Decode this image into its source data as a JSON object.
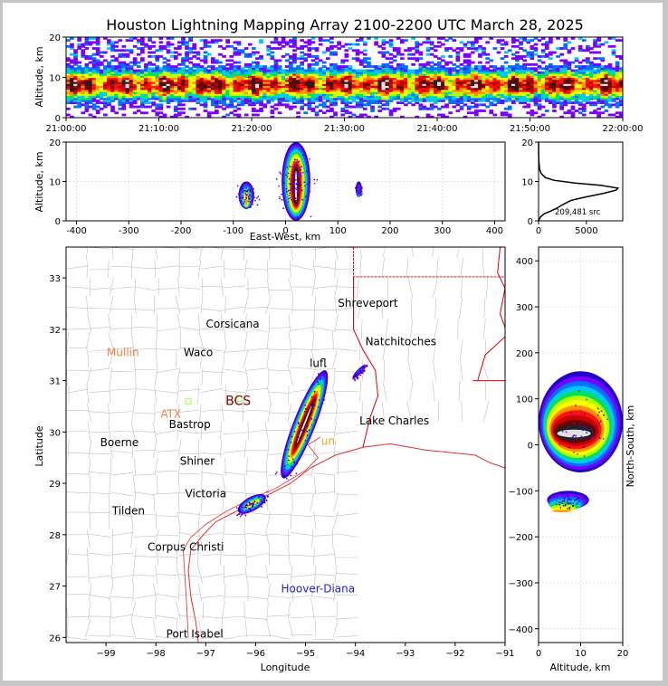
{
  "title": "Houston Lightning Mapping Array 2100-2200 UTC March 28, 2025",
  "colors": {
    "density_scale": [
      "#2200cc",
      "#7a00ff",
      "#0070ff",
      "#00c8ff",
      "#00e060",
      "#b8ff00",
      "#ffff00",
      "#ff9000",
      "#ff1010",
      "#c80000",
      "#700000",
      "#202020",
      "#e0e0e0"
    ],
    "coast": "#e03030",
    "state_line": "#e00000",
    "county_line": "#c0c0c0"
  },
  "chart_data": [
    {
      "id": "time_height",
      "type": "heatmap",
      "ylabel": "Altitude, km",
      "xlim": [
        "21:00:00",
        "22:00:00"
      ],
      "ylim": [
        0,
        20
      ],
      "x_ticks": [
        "21:00:00",
        "21:10:00",
        "21:20:00",
        "21:30:00",
        "21:40:00",
        "21:50:00",
        "22:00:00"
      ],
      "y_ticks": [
        0,
        10,
        20
      ],
      "core_altitude_km": [
        4,
        12
      ],
      "peak_altitude_km": 8
    },
    {
      "id": "ew_altitude",
      "type": "heatmap",
      "xlabel": "East-West, km",
      "ylabel": "Altitude, km",
      "xlim": [
        -420,
        420
      ],
      "ylim": [
        0,
        20
      ],
      "x_ticks": [
        -400,
        -300,
        -200,
        -100,
        0,
        100,
        200,
        300,
        400
      ],
      "y_ticks": [
        0,
        10,
        20
      ],
      "cells": [
        {
          "center_km": 20,
          "width_km": 55,
          "alt_low_km": 0,
          "alt_high_km": 20,
          "max_level": 12
        },
        {
          "center_km": -75,
          "width_km": 30,
          "alt_low_km": 3,
          "alt_high_km": 10,
          "max_level": 7
        },
        {
          "center_km": 140,
          "width_km": 12,
          "alt_low_km": 6,
          "alt_high_km": 10,
          "max_level": 3
        }
      ]
    },
    {
      "id": "altitude_histogram",
      "type": "line",
      "xlim": [
        0,
        8800
      ],
      "ylim": [
        0,
        20
      ],
      "x_ticks": [
        0,
        5000
      ],
      "y_ticks": [
        0,
        10,
        20
      ],
      "annotation": "209,481 src",
      "series": [
        {
          "points": [
            [
              0,
              0
            ],
            [
              200,
              1
            ],
            [
              600,
              1.8
            ],
            [
              1200,
              2.4
            ],
            [
              1900,
              3.2
            ],
            [
              2600,
              4.2
            ],
            [
              3400,
              5.2
            ],
            [
              5000,
              6.1
            ],
            [
              6800,
              7
            ],
            [
              8100,
              7.8
            ],
            [
              8300,
              8.3
            ],
            [
              6500,
              9
            ],
            [
              3800,
              9.6
            ],
            [
              1600,
              10.3
            ],
            [
              700,
              11
            ],
            [
              280,
              12
            ],
            [
              110,
              13
            ],
            [
              40,
              15
            ],
            [
              10,
              17
            ],
            [
              0,
              20
            ]
          ]
        }
      ]
    },
    {
      "id": "plan_view",
      "type": "heatmap",
      "xlabel": "Longitude",
      "ylabel": "Latitude",
      "xlim": [
        -99.8,
        -91
      ],
      "ylim": [
        25.9,
        33.6
      ],
      "x_ticks": [
        -99,
        -98,
        -97,
        -96,
        -95,
        -94,
        -93,
        -92,
        -91
      ],
      "y_ticks": [
        26,
        27,
        28,
        29,
        30,
        31,
        32,
        33
      ],
      "cities": [
        {
          "name": "Shreveport",
          "lon": -93.75,
          "lat": 32.51,
          "color": "#000000"
        },
        {
          "name": "Corsicana",
          "lon": -96.46,
          "lat": 32.1,
          "color": "#000000"
        },
        {
          "name": "Natchitoches",
          "lon": -93.09,
          "lat": 31.76,
          "color": "#000000"
        },
        {
          "name": "Mullin",
          "lon": -98.66,
          "lat": 31.55,
          "color": "#f08040"
        },
        {
          "name": "Waco",
          "lon": -97.15,
          "lat": 31.55,
          "color": "#000000"
        },
        {
          "name": "lufl",
          "lon": -94.75,
          "lat": 31.34,
          "color": "#000000"
        },
        {
          "name": "BCS",
          "lon": -96.35,
          "lat": 30.6,
          "color": "#800000"
        },
        {
          "name": "ATX",
          "lon": -97.7,
          "lat": 30.35,
          "color": "#f08040"
        },
        {
          "name": "Bastrop",
          "lon": -97.32,
          "lat": 30.15,
          "color": "#000000"
        },
        {
          "name": "Lake Charles",
          "lon": -93.22,
          "lat": 30.22,
          "color": "#000000"
        },
        {
          "name": "Boerne",
          "lon": -98.73,
          "lat": 29.79,
          "color": "#000000"
        },
        {
          "name": "un",
          "lon": -94.55,
          "lat": 29.82,
          "color": "#f0a020"
        },
        {
          "name": "Shiner",
          "lon": -97.17,
          "lat": 29.43,
          "color": "#000000"
        },
        {
          "name": "Victoria",
          "lon": -97.0,
          "lat": 28.8,
          "color": "#000000"
        },
        {
          "name": "Tilden",
          "lon": -98.55,
          "lat": 28.46,
          "color": "#000000"
        },
        {
          "name": "Corpus Christi",
          "lon": -97.4,
          "lat": 27.76,
          "color": "#000000"
        },
        {
          "name": "Hoover-Diana",
          "lon": -94.75,
          "lat": 26.95,
          "color": "#2020e0"
        },
        {
          "name": "Port Isabel",
          "lon": -97.22,
          "lat": 26.07,
          "color": "#000000"
        }
      ],
      "stations": [
        {
          "lon": -97.35,
          "lat": 30.6,
          "color": "#a0ff40"
        },
        {
          "lon": -96.33,
          "lat": 30.65,
          "color": "#a0ff40"
        }
      ],
      "line_cells": [
        {
          "lon1": -95.45,
          "lat1": 29.1,
          "lon2": -94.6,
          "lat2": 31.2,
          "width_deg": 0.22,
          "max_level": 12
        },
        {
          "lon1": -96.35,
          "lat1": 28.45,
          "lon2": -95.8,
          "lat2": 28.75,
          "width_deg": 0.14,
          "max_level": 7
        },
        {
          "lon1": -94.05,
          "lat1": 31.05,
          "lon2": -93.8,
          "lat2": 31.3,
          "width_deg": 0.05,
          "max_level": 3
        }
      ]
    },
    {
      "id": "ns_altitude",
      "type": "heatmap",
      "xlabel": "Altitude, km",
      "ylabel": "North-South, km",
      "xlim": [
        0,
        20
      ],
      "ylim": [
        -430,
        430
      ],
      "x_ticks": [
        0,
        10,
        20
      ],
      "y_ticks": [
        -400,
        -300,
        -200,
        -100,
        0,
        100,
        200,
        300,
        400
      ],
      "cells": [
        {
          "ns_low_km": -60,
          "ns_high_km": 160,
          "alt_low_km": 0,
          "alt_high_km": 20,
          "max_level": 12
        },
        {
          "ns_low_km": -140,
          "ns_high_km": -100,
          "alt_low_km": 2,
          "alt_high_km": 12,
          "max_level": 7
        }
      ]
    }
  ]
}
